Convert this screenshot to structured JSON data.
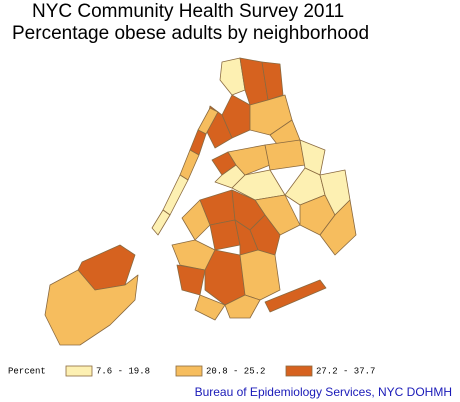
{
  "title": "NYC Community Health Survey 2011",
  "subtitle": "Percentage obese adults by neighborhood",
  "legend": {
    "label": "Percent",
    "classes": [
      {
        "label": "7.6 - 19.8",
        "color": "#fdf0b2"
      },
      {
        "label": "20.8 - 25.2",
        "color": "#f6bd5e"
      },
      {
        "label": "27.2 - 37.7",
        "color": "#d6621f"
      }
    ]
  },
  "source": "Bureau of Epidemiology Services, NYC DOHMH"
}
